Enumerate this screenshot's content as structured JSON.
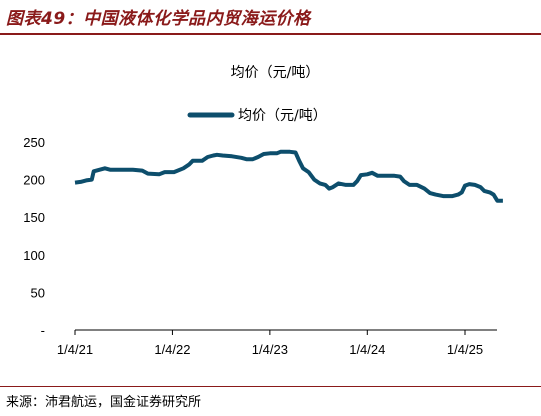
{
  "figure_title": "图表49：中国液体化学品内贸海运价格",
  "source": "来源：沛君航运，国金证券研究所",
  "colors": {
    "title": "#8a1a1a",
    "series": "#0d4e6c",
    "axis": "#000000"
  },
  "chart_data": {
    "type": "line",
    "title": "均价（元/吨）",
    "legend": {
      "position": "top-center",
      "entries": [
        "均价（元/吨）"
      ]
    },
    "xlabel": "",
    "ylabel": "",
    "ylim": [
      0,
      250
    ],
    "y_ticks": [
      0,
      50,
      100,
      150,
      200,
      250
    ],
    "y_tick_labels": [
      "-",
      "50",
      "100",
      "150",
      "200",
      "250"
    ],
    "x_ticks": [
      "2021-01-04",
      "2022-01-04",
      "2023-01-04",
      "2024-01-04",
      "2025-01-04"
    ],
    "x_tick_labels": [
      "1/4/21",
      "1/4/22",
      "1/4/23",
      "1/4/24",
      "1/4/25"
    ],
    "grid": false,
    "series": [
      {
        "name": "均价（元/吨）",
        "points": [
          [
            "2021-01-04",
            196
          ],
          [
            "2021-01-25",
            197
          ],
          [
            "2021-02-15",
            199
          ],
          [
            "2021-03-08",
            200
          ],
          [
            "2021-03-15",
            211
          ],
          [
            "2021-04-05",
            213
          ],
          [
            "2021-04-26",
            215
          ],
          [
            "2021-05-17",
            213
          ],
          [
            "2021-06-28",
            213
          ],
          [
            "2021-08-09",
            213
          ],
          [
            "2021-09-13",
            212
          ],
          [
            "2021-10-04",
            208
          ],
          [
            "2021-11-15",
            207
          ],
          [
            "2021-12-06",
            210
          ],
          [
            "2022-01-10",
            210
          ],
          [
            "2022-02-14",
            215
          ],
          [
            "2022-03-07",
            220
          ],
          [
            "2022-03-21",
            225
          ],
          [
            "2022-04-25",
            225
          ],
          [
            "2022-05-16",
            230
          ],
          [
            "2022-06-06",
            232
          ],
          [
            "2022-06-20",
            233
          ],
          [
            "2022-07-11",
            232
          ],
          [
            "2022-08-15",
            231
          ],
          [
            "2022-09-19",
            229
          ],
          [
            "2022-10-10",
            227
          ],
          [
            "2022-10-31",
            227
          ],
          [
            "2022-11-21",
            230
          ],
          [
            "2022-12-12",
            234
          ],
          [
            "2023-01-04",
            235
          ],
          [
            "2023-01-30",
            235
          ],
          [
            "2023-02-13",
            237
          ],
          [
            "2023-03-20",
            237
          ],
          [
            "2023-04-10",
            236
          ],
          [
            "2023-04-24",
            225
          ],
          [
            "2023-05-08",
            215
          ],
          [
            "2023-05-29",
            210
          ],
          [
            "2023-06-19",
            200
          ],
          [
            "2023-07-10",
            195
          ],
          [
            "2023-07-31",
            193
          ],
          [
            "2023-08-14",
            188
          ],
          [
            "2023-08-28",
            190
          ],
          [
            "2023-09-18",
            195
          ],
          [
            "2023-10-16",
            193
          ],
          [
            "2023-11-13",
            193
          ],
          [
            "2023-11-27",
            198
          ],
          [
            "2023-12-11",
            206
          ],
          [
            "2024-01-04",
            207
          ],
          [
            "2024-01-22",
            209
          ],
          [
            "2024-02-12",
            205
          ],
          [
            "2024-03-11",
            205
          ],
          [
            "2024-04-15",
            205
          ],
          [
            "2024-05-06",
            204
          ],
          [
            "2024-05-20",
            198
          ],
          [
            "2024-06-10",
            193
          ],
          [
            "2024-07-08",
            193
          ],
          [
            "2024-08-05",
            188
          ],
          [
            "2024-08-26",
            182
          ],
          [
            "2024-09-16",
            180
          ],
          [
            "2024-10-14",
            178
          ],
          [
            "2024-11-18",
            178
          ],
          [
            "2024-12-09",
            180
          ],
          [
            "2024-12-23",
            183
          ],
          [
            "2025-01-04",
            192
          ],
          [
            "2025-01-20",
            194
          ],
          [
            "2025-02-10",
            193
          ],
          [
            "2025-03-03",
            190
          ],
          [
            "2025-03-17",
            185
          ],
          [
            "2025-04-07",
            183
          ],
          [
            "2025-04-21",
            180
          ],
          [
            "2025-05-05",
            172
          ],
          [
            "2025-05-26",
            172
          ]
        ]
      }
    ]
  }
}
